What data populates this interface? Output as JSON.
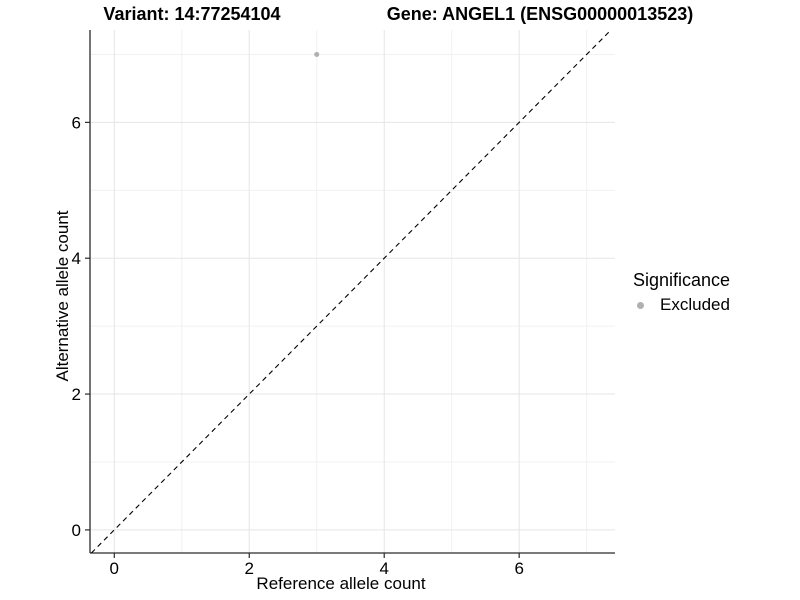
{
  "chart_data": {
    "type": "scatter",
    "title_variant": "Variant: 14:77254104",
    "title_gene": "Gene: ANGEL1 (ENSG00000013523)",
    "xlabel": "Reference allele count",
    "ylabel": "Alternative allele count",
    "xlim": [
      -0.36,
      7.42
    ],
    "ylim": [
      -0.34,
      7.36
    ],
    "x_ticks": [
      0,
      2,
      4,
      6
    ],
    "y_ticks": [
      0,
      2,
      4,
      6
    ],
    "x_minor": [
      1,
      3,
      5,
      7
    ],
    "y_minor": [
      1,
      3,
      5,
      7
    ],
    "grid": true,
    "identity_line": {
      "style": "dashed",
      "color": "#000000"
    },
    "series": [
      {
        "name": "Excluded",
        "color": "#b0b0b0",
        "points": [
          {
            "x": 3,
            "y": 7
          }
        ]
      }
    ],
    "legend": {
      "position": "right",
      "title": "Significance",
      "items": [
        {
          "label": "Excluded",
          "color": "#b0b0b0"
        }
      ]
    },
    "colors": {
      "background": "#ffffff",
      "grid_major": "#e5e5e5",
      "grid_minor": "#f1f1f1",
      "axis": "#2b2b2b",
      "tick": "#2b2b2b"
    }
  }
}
